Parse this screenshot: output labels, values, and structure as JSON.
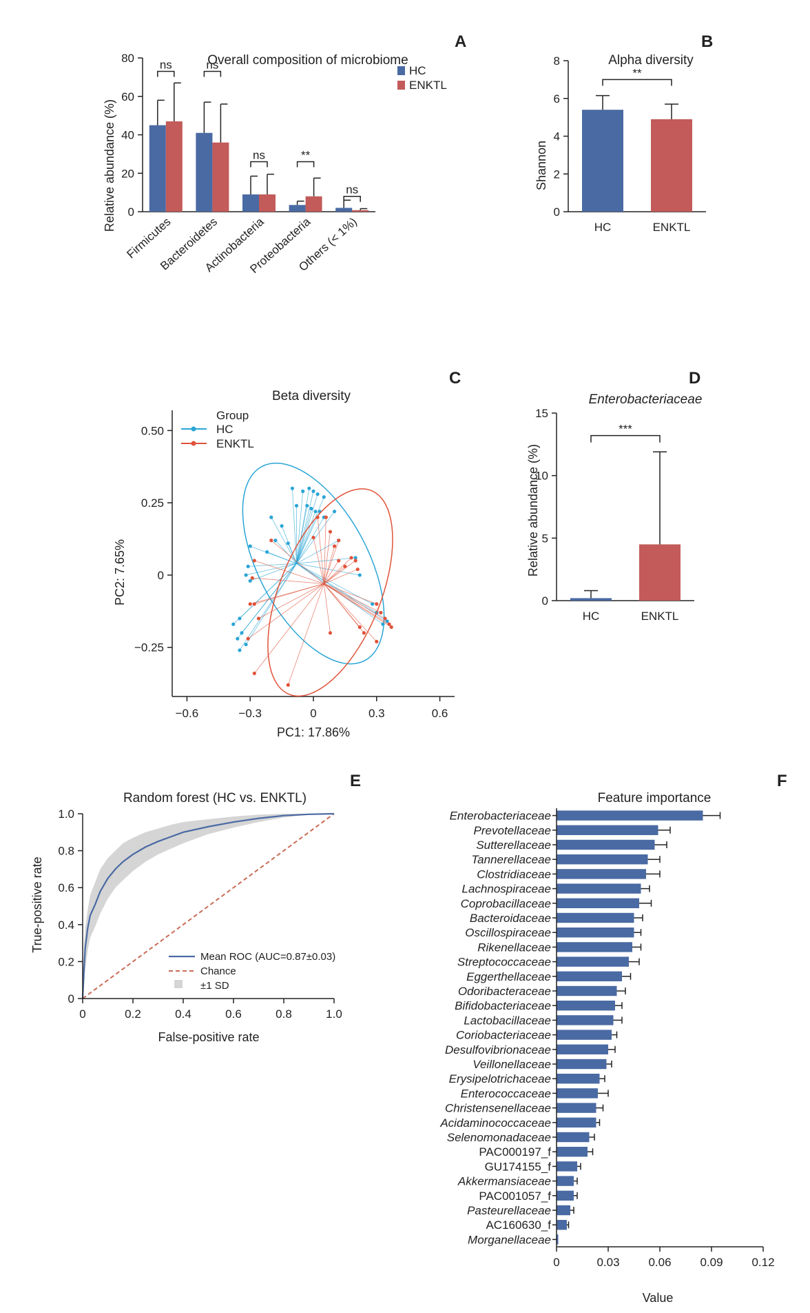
{
  "colors": {
    "hc_bar": "#4a6aa3",
    "enktl_bar": "#c25b59",
    "hc_point": "#2aa5d6",
    "enktl_point": "#e0533a",
    "roc": "#4a6aa3",
    "chance": "#c96b55",
    "sd": "#d5d5d5"
  },
  "chart_data": [
    {
      "panel": "A",
      "type": "bar",
      "title": "Overall composition of microbiome",
      "ylabel": "Relative abundance (%)",
      "xlabel": "",
      "ylim": [
        0,
        80
      ],
      "yticks": [
        0,
        20,
        40,
        60,
        80
      ],
      "categories": [
        "Firmicutes",
        "Bacteroidetes",
        "Actinobacteria",
        "Proteobacteria",
        "Others (< 1%)"
      ],
      "series": [
        {
          "name": "HC",
          "values": [
            45,
            41,
            9,
            3.5,
            2
          ],
          "errors": [
            13,
            16,
            9.5,
            2,
            4
          ]
        },
        {
          "name": "ENKTL",
          "values": [
            47,
            36,
            9,
            8,
            0.8
          ],
          "errors": [
            20,
            20,
            10.5,
            9.5,
            0.8
          ]
        }
      ],
      "significance": [
        "ns",
        "ns",
        "ns",
        "**",
        "ns"
      ],
      "legend": [
        "HC",
        "ENKTL"
      ]
    },
    {
      "panel": "B",
      "type": "bar",
      "title": "Alpha diversity",
      "ylabel": "Shannon",
      "xlabel": "",
      "ylim": [
        0,
        8
      ],
      "yticks": [
        0,
        2,
        4,
        6,
        8
      ],
      "categories": [
        "HC",
        "ENKTL"
      ],
      "values": [
        5.4,
        4.9
      ],
      "errors": [
        0.75,
        0.8
      ],
      "significance": "**"
    },
    {
      "panel": "C",
      "type": "scatter",
      "title": "Beta diversity",
      "xlabel": "PC1: 17.86%",
      "ylabel": "PC2: 7.65%",
      "xlim": [
        -0.67,
        0.67
      ],
      "ylim": [
        -0.42,
        0.57
      ],
      "xticks": [
        "−0.6",
        "−0.3",
        "0",
        "0.3",
        "0.6"
      ],
      "xtick_values": [
        -0.6,
        -0.3,
        0,
        0.3,
        0.6
      ],
      "yticks": [
        "−0.25",
        "0",
        "0.25",
        "0.50"
      ],
      "ytick_values": [
        -0.25,
        0,
        0.25,
        0.5
      ],
      "legend_title": "Group",
      "groups": [
        {
          "name": "HC",
          "centroid": [
            -0.08,
            0.04
          ],
          "ellipse": {
            "center": [
              0.0,
              0.04
            ],
            "rx": 0.26,
            "ry": 0.38,
            "angle_deg": -28
          },
          "points": [
            [
              -0.1,
              0.3
            ],
            [
              -0.05,
              0.29
            ],
            [
              -0.02,
              0.3
            ],
            [
              0.0,
              0.29
            ],
            [
              0.02,
              0.28
            ],
            [
              -0.08,
              0.24
            ],
            [
              -0.03,
              0.24
            ],
            [
              -0.01,
              0.23
            ],
            [
              0.01,
              0.22
            ],
            [
              0.03,
              0.22
            ],
            [
              -0.2,
              0.2
            ],
            [
              -0.15,
              0.17
            ],
            [
              -0.18,
              0.12
            ],
            [
              -0.12,
              0.11
            ],
            [
              -0.3,
              0.1
            ],
            [
              -0.22,
              0.08
            ],
            [
              -0.31,
              0.03
            ],
            [
              -0.32,
              0.0
            ],
            [
              -0.3,
              -0.02
            ],
            [
              -0.35,
              -0.15
            ],
            [
              -0.38,
              -0.17
            ],
            [
              -0.34,
              -0.2
            ],
            [
              -0.36,
              -0.22
            ],
            [
              -0.32,
              -0.24
            ],
            [
              -0.35,
              -0.26
            ],
            [
              0.05,
              0.2
            ],
            [
              0.1,
              0.22
            ],
            [
              0.12,
              0.12
            ],
            [
              0.2,
              0.06
            ],
            [
              0.22,
              0.0
            ],
            [
              0.28,
              -0.1
            ],
            [
              0.3,
              -0.13
            ],
            [
              0.35,
              -0.16
            ],
            [
              0.33,
              -0.17
            ],
            [
              0.05,
              0.27
            ]
          ]
        },
        {
          "name": "ENKTL",
          "centroid": [
            0.05,
            -0.03
          ],
          "ellipse": {
            "center": [
              0.08,
              -0.06
            ],
            "rx": 0.24,
            "ry": 0.38,
            "angle_deg": 22
          },
          "points": [
            [
              0.02,
              0.2
            ],
            [
              0.06,
              0.2
            ],
            [
              0.0,
              0.13
            ],
            [
              0.08,
              0.15
            ],
            [
              0.1,
              0.1
            ],
            [
              0.12,
              0.12
            ],
            [
              0.2,
              0.05
            ],
            [
              0.21,
              0.02
            ],
            [
              0.15,
              0.03
            ],
            [
              0.18,
              0.06
            ],
            [
              -0.2,
              0.12
            ],
            [
              -0.28,
              0.05
            ],
            [
              -0.29,
              -0.01
            ],
            [
              -0.3,
              -0.1
            ],
            [
              -0.28,
              -0.1
            ],
            [
              -0.26,
              -0.15
            ],
            [
              -0.31,
              -0.22
            ],
            [
              -0.28,
              -0.34
            ],
            [
              -0.12,
              -0.38
            ],
            [
              0.3,
              -0.1
            ],
            [
              0.32,
              -0.13
            ],
            [
              0.34,
              -0.15
            ],
            [
              0.36,
              -0.17
            ],
            [
              0.37,
              -0.18
            ],
            [
              0.3,
              -0.23
            ],
            [
              0.22,
              -0.18
            ],
            [
              0.24,
              -0.2
            ],
            [
              0.08,
              -0.2
            ],
            [
              0.12,
              0.05
            ]
          ]
        }
      ]
    },
    {
      "panel": "D",
      "type": "bar",
      "title": "Enterobacteriaceae",
      "ylabel": "Relative abundance (%)",
      "xlabel": "",
      "ylim": [
        0,
        15
      ],
      "yticks": [
        0,
        5,
        10,
        15
      ],
      "categories": [
        "HC",
        "ENKTL"
      ],
      "values": [
        0.2,
        4.5
      ],
      "errors": [
        0.6,
        7.4
      ],
      "significance": "***"
    },
    {
      "panel": "E",
      "type": "line",
      "title": "Random forest (HC vs. ENKTL)",
      "xlabel": "False-positive rate",
      "ylabel": "True-positive rate",
      "xlim": [
        0,
        1
      ],
      "ylim": [
        0,
        1
      ],
      "xticks": [
        "0",
        "0.2",
        "0.4",
        "0.6",
        "0.8",
        "1.0"
      ],
      "xtick_values": [
        0,
        0.2,
        0.4,
        0.6,
        0.8,
        1.0
      ],
      "yticks": [
        "0",
        "0.2",
        "0.4",
        "0.6",
        "0.8",
        "1.0"
      ],
      "ytick_values": [
        0,
        0.2,
        0.4,
        0.6,
        0.8,
        1.0
      ],
      "series": [
        {
          "name": "Mean ROC (AUC=0.87±0.03)",
          "x": [
            0,
            0.005,
            0.01,
            0.02,
            0.03,
            0.05,
            0.07,
            0.1,
            0.13,
            0.16,
            0.2,
            0.25,
            0.3,
            0.35,
            0.4,
            0.5,
            0.6,
            0.7,
            0.8,
            0.9,
            1.0
          ],
          "y": [
            0,
            0.15,
            0.27,
            0.38,
            0.45,
            0.51,
            0.58,
            0.65,
            0.7,
            0.74,
            0.78,
            0.82,
            0.85,
            0.875,
            0.9,
            0.93,
            0.955,
            0.975,
            0.99,
            0.997,
            1.0
          ]
        },
        {
          "name": "Chance",
          "x": [
            0,
            1
          ],
          "y": [
            0,
            1
          ]
        }
      ],
      "sd_upper": [
        0,
        0.28,
        0.38,
        0.48,
        0.56,
        0.63,
        0.7,
        0.76,
        0.8,
        0.84,
        0.87,
        0.9,
        0.92,
        0.94,
        0.955,
        0.97,
        0.985,
        0.995,
        1.0,
        1.0,
        1.0
      ],
      "sd_lower": [
        0,
        0.05,
        0.15,
        0.26,
        0.33,
        0.39,
        0.46,
        0.54,
        0.6,
        0.64,
        0.69,
        0.74,
        0.78,
        0.81,
        0.84,
        0.89,
        0.925,
        0.955,
        0.98,
        0.994,
        1.0
      ],
      "legend": [
        "Mean ROC (AUC=0.87±0.03)",
        "Chance",
        "±1 SD"
      ]
    },
    {
      "panel": "F",
      "type": "bar",
      "orientation": "horizontal",
      "title": "Feature importance",
      "xlabel": "Value",
      "ylabel": "",
      "xlim": [
        0,
        0.12
      ],
      "xticks": [
        "0",
        "0.03",
        "0.06",
        "0.09",
        "0.12"
      ],
      "xtick_values": [
        0,
        0.03,
        0.06,
        0.09,
        0.12
      ],
      "categories": [
        "Enterobacteriaceae",
        "Prevotellaceae",
        "Sutterellaceae",
        "Tannerellaceae",
        "Clostridiaceae",
        "Lachnospiraceae",
        "Coprobacillaceae",
        "Bacteroidaceae",
        "Oscillospiraceae",
        "Rikenellaceae",
        "Streptococcaceae",
        "Eggerthellaceae",
        "Odoribacteraceae",
        "Bifidobacteriaceae",
        "Lactobacillaceae",
        "Coriobacteriaceae",
        "Desulfovibrionaceae",
        "Veillonellaceae",
        "Erysipelotrichaceae",
        "Enterococcaceae",
        "Christensenellaceae",
        "Acidaminococcaceae",
        "Selenomonadaceae",
        "PAC000197_f",
        "GU174155_f",
        "Akkermansiaceae",
        "PAC001057_f",
        "Pasteurellaceae",
        "AC160630_f",
        "Morganellaceae"
      ],
      "italic": [
        true,
        true,
        true,
        true,
        true,
        true,
        true,
        true,
        true,
        true,
        true,
        true,
        true,
        true,
        true,
        true,
        true,
        true,
        true,
        true,
        true,
        true,
        true,
        false,
        false,
        true,
        false,
        true,
        false,
        true
      ],
      "values": [
        0.085,
        0.059,
        0.057,
        0.053,
        0.052,
        0.049,
        0.048,
        0.045,
        0.045,
        0.044,
        0.042,
        0.038,
        0.035,
        0.034,
        0.033,
        0.032,
        0.03,
        0.029,
        0.025,
        0.024,
        0.023,
        0.023,
        0.019,
        0.018,
        0.012,
        0.01,
        0.01,
        0.008,
        0.006,
        0.001
      ],
      "errors": [
        0.01,
        0.007,
        0.007,
        0.007,
        0.008,
        0.005,
        0.007,
        0.005,
        0.004,
        0.005,
        0.006,
        0.005,
        0.005,
        0.004,
        0.005,
        0.003,
        0.004,
        0.003,
        0.003,
        0.006,
        0.004,
        0.002,
        0.003,
        0.003,
        0.002,
        0.002,
        0.002,
        0.002,
        0.001,
        0.0
      ]
    }
  ]
}
